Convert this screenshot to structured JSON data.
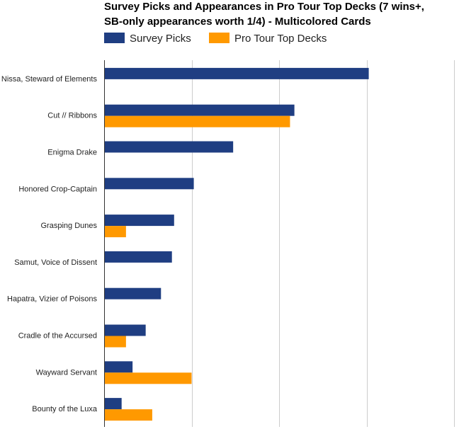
{
  "chart_data": {
    "type": "bar",
    "orientation": "horizontal",
    "title_lines": [
      "Survey Picks and Appearances in Pro Tour Top Decks (7 wins+,",
      "SB-only appearances worth 1/4) - Multicolored Cards"
    ],
    "categories": [
      "Nissa, Steward of Elements",
      "Cut // Ribbons",
      "Enigma Drake",
      "Honored Crop-Captain",
      "Grasping Dunes",
      "Samut, Voice of Dissent",
      "Hapatra, Vizier of Poisons",
      "Cradle of the Accursed",
      "Wayward Servant",
      "Bounty of the Luxa"
    ],
    "series": [
      {
        "name": "Survey Picks",
        "color": "#1f3e82",
        "values": [
          6.05,
          4.35,
          2.95,
          2.05,
          1.6,
          1.55,
          1.3,
          0.95,
          0.65,
          0.4
        ]
      },
      {
        "name": "Pro Tour Top Decks",
        "color": "#ff9900",
        "values": [
          0,
          4.25,
          0,
          0,
          0.5,
          0,
          0,
          0.5,
          2.0,
          1.1
        ]
      }
    ],
    "xlim": [
      0,
      8
    ],
    "grid": true,
    "legend_position": "top-left"
  }
}
